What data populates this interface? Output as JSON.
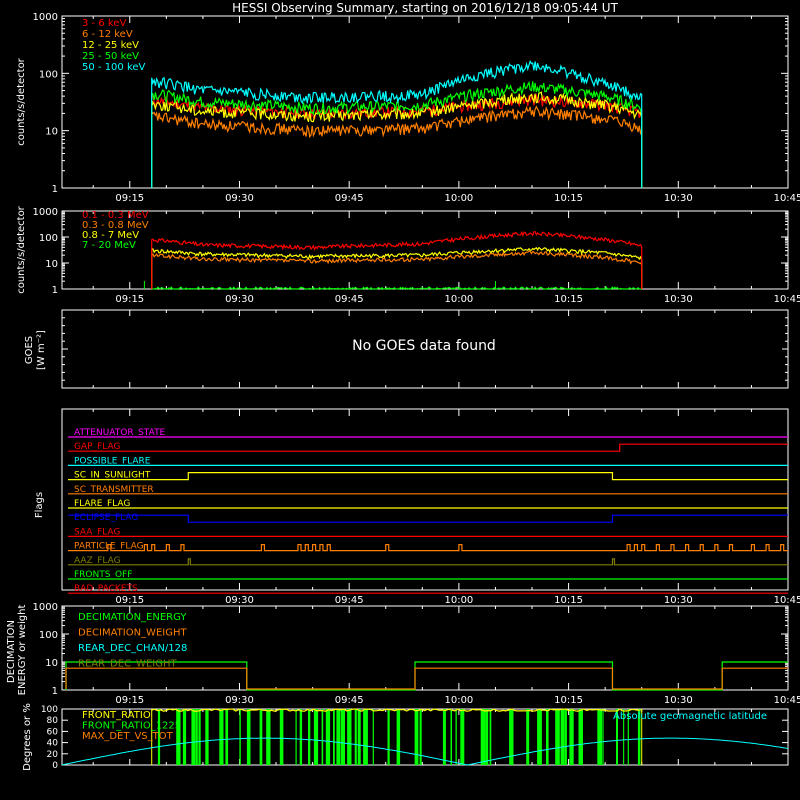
{
  "chart_data": [
    {
      "type": "line",
      "title": "HESSI Observing Summary, starting on 2016/12/18 09:05:44 UT",
      "ylabel": "counts/s/detector",
      "yscale": "log",
      "ylim": [
        1,
        1000
      ],
      "ytick_labels": [
        "1",
        "10",
        "100",
        "1000"
      ],
      "x_tick_labels": [
        "09:15",
        "09:30",
        "09:45",
        "10:00",
        "10:15",
        "10:30",
        "10:45"
      ],
      "x_range": [
        "09:05:44",
        "10:45"
      ],
      "series": [
        {
          "name": "3 - 6 keV",
          "color": "#ff0000",
          "x": [
            "09:18",
            "09:25",
            "09:40",
            "09:55",
            "10:10",
            "10:20",
            "10:25"
          ],
          "values": [
            35,
            25,
            20,
            22,
            35,
            28,
            20
          ]
        },
        {
          "name": "6 - 12 keV",
          "color": "#ff7f00",
          "x": [
            "09:18",
            "09:25",
            "09:40",
            "09:55",
            "10:10",
            "10:20",
            "10:25"
          ],
          "values": [
            18,
            13,
            10,
            11,
            22,
            16,
            10
          ]
        },
        {
          "name": "12 - 25 keV",
          "color": "#ffff00",
          "x": [
            "09:18",
            "09:25",
            "09:40",
            "09:55",
            "10:10",
            "10:20",
            "10:25"
          ],
          "values": [
            30,
            22,
            18,
            20,
            40,
            28,
            18
          ]
        },
        {
          "name": "25 - 50 keV",
          "color": "#00ff00",
          "x": [
            "09:18",
            "09:25",
            "09:40",
            "09:55",
            "10:10",
            "10:20",
            "10:25"
          ],
          "values": [
            45,
            32,
            25,
            28,
            60,
            40,
            25
          ]
        },
        {
          "name": "50 - 100 keV",
          "color": "#00ffff",
          "x": [
            "09:18",
            "09:25",
            "09:40",
            "09:55",
            "10:10",
            "10:20",
            "10:25"
          ],
          "values": [
            75,
            50,
            38,
            42,
            140,
            65,
            38
          ]
        }
      ]
    },
    {
      "type": "line",
      "ylabel": "counts/s/detector",
      "yscale": "log",
      "ylim": [
        1,
        1000
      ],
      "ytick_labels": [
        "1",
        "10",
        "100",
        "1000"
      ],
      "x_tick_labels": [
        "09:15",
        "09:30",
        "09:45",
        "10:00",
        "10:15",
        "10:30",
        "10:45"
      ],
      "series": [
        {
          "name": "0.1 - 0.3 MeV",
          "color": "#ff0000",
          "x": [
            "09:18",
            "09:25",
            "09:40",
            "09:55",
            "10:10",
            "10:20",
            "10:25"
          ],
          "values": [
            80,
            50,
            40,
            55,
            140,
            80,
            45
          ]
        },
        {
          "name": "0.3 - 0.8 MeV",
          "color": "#ff7f00",
          "x": [
            "09:18",
            "09:25",
            "09:40",
            "09:55",
            "10:10",
            "10:20",
            "10:25"
          ],
          "values": [
            20,
            14,
            12,
            14,
            25,
            16,
            10
          ]
        },
        {
          "name": "0.8 - 7 MeV",
          "color": "#ffff00",
          "x": [
            "09:18",
            "09:25",
            "09:40",
            "09:55",
            "10:10",
            "10:20",
            "10:25"
          ],
          "values": [
            30,
            22,
            18,
            20,
            35,
            24,
            15
          ]
        },
        {
          "name": "7 - 20 MeV",
          "color": "#00ff00",
          "x": [
            "09:18",
            "09:25",
            "09:40",
            "09:55",
            "10:10",
            "10:20",
            "10:25"
          ],
          "values": [
            1,
            1,
            1,
            1,
            1,
            1,
            1
          ]
        }
      ]
    },
    {
      "type": "line",
      "ylabel": "GOES",
      "ylabel_units": "[W m⁻²]",
      "x_tick_labels": [],
      "message": "No GOES data found"
    },
    {
      "type": "line",
      "ylabel": "Flags",
      "x_tick_labels": [
        "09:15",
        "09:30",
        "09:45",
        "10:00",
        "10:15",
        "10:30",
        "10:45"
      ],
      "flags": [
        {
          "name": "ATTENUATOR_STATE",
          "color": "#ff00ff"
        },
        {
          "name": "GAP_FLAG",
          "color": "#ff0000"
        },
        {
          "name": "POSSIBLE_FLARE",
          "color": "#00ffff"
        },
        {
          "name": "SC_IN_SUNLIGHT",
          "color": "#ffff00"
        },
        {
          "name": "SC_TRANSMITTER",
          "color": "#ff7f00"
        },
        {
          "name": "FLARE_FLAG",
          "color": "#ffff00"
        },
        {
          "name": "ECLIPSE_FLAG",
          "color": "#0000ff"
        },
        {
          "name": "SAA_FLAG",
          "color": "#ff0000"
        },
        {
          "name": "PARTICLE_FLAG",
          "color": "#ff7f00"
        },
        {
          "name": "AAZ_FLAG",
          "color": "#7f7f00"
        },
        {
          "name": "FRONTS_OFF",
          "color": "#00ff00"
        },
        {
          "name": "BAD_PACKETS",
          "color": "#ff0000"
        }
      ],
      "transitions": {
        "gap_flag_rise": "10:22",
        "sunlight_start": "09:23",
        "sunlight_end": "10:21",
        "eclipse_end": "09:23",
        "eclipse_start": "10:21"
      }
    },
    {
      "type": "line",
      "ylabel": "DECIMATION ENERGY or weight",
      "yscale": "log",
      "ylim": [
        1,
        1000
      ],
      "ytick_labels": [
        "1",
        "10",
        "100",
        "1000"
      ],
      "x_tick_labels": [
        "09:15",
        "09:30",
        "09:45",
        "10:00",
        "10:15",
        "10:30",
        "10:45"
      ],
      "series": [
        {
          "name": "DECIMATION_ENERGY",
          "color": "#00ff00"
        },
        {
          "name": "DECIMATION_WEIGHT",
          "color": "#ff7f00"
        },
        {
          "name": "REAR_DEC_CHAN/128",
          "color": "#00ffff"
        },
        {
          "name": "REAR_DEC_WEIGHT",
          "color": "#7f7f00"
        }
      ]
    },
    {
      "type": "line",
      "ylabel": "Degrees or %",
      "ylim": [
        0,
        100
      ],
      "ytick_labels": [
        "0",
        "20",
        "40",
        "60",
        "80",
        "100"
      ],
      "x_tick_labels": [],
      "series": [
        {
          "name": "FRONT_RATIO",
          "color": "#ffff00"
        },
        {
          "name": "FRONT_RATIO_1225",
          "color": "#00ff00"
        },
        {
          "name": "MAX_DET_VS_TOT",
          "color": "#ff7f00"
        },
        {
          "name": "Absolute geomagnetic latitude",
          "color": "#00ffff"
        }
      ]
    }
  ]
}
